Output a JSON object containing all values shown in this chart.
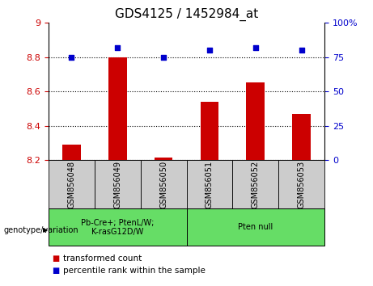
{
  "title": "GDS4125 / 1452984_at",
  "samples": [
    "GSM856048",
    "GSM856049",
    "GSM856050",
    "GSM856051",
    "GSM856052",
    "GSM856053"
  ],
  "bar_values": [
    8.29,
    8.8,
    8.215,
    8.54,
    8.655,
    8.47
  ],
  "bar_baseline": 8.2,
  "bar_color": "#cc0000",
  "dot_values": [
    75,
    82,
    75,
    80,
    82,
    80
  ],
  "dot_color": "#0000cc",
  "ylim_left": [
    8.2,
    9.0
  ],
  "ylim_right": [
    0,
    100
  ],
  "yticks_left": [
    8.2,
    8.4,
    8.6,
    8.8,
    9.0
  ],
  "yticks_right": [
    0,
    25,
    50,
    75,
    100
  ],
  "ytick_labels_left": [
    "8.2",
    "8.4",
    "8.6",
    "8.8",
    "9"
  ],
  "ytick_labels_right": [
    "0",
    "25",
    "50",
    "75",
    "100%"
  ],
  "left_tick_color": "#cc0000",
  "right_tick_color": "#0000cc",
  "groups": [
    {
      "label": "Pb-Cre+; PtenL/W;\nK-rasG12D/W",
      "start": 0,
      "end": 2,
      "color": "#66dd66"
    },
    {
      "label": "Pten null",
      "start": 3,
      "end": 5,
      "color": "#66dd66"
    }
  ],
  "group_label_prefix": "genotype/variation",
  "legend_items": [
    {
      "color": "#cc0000",
      "label": "transformed count"
    },
    {
      "color": "#0000cc",
      "label": "percentile rank within the sample"
    }
  ],
  "background_color": "#ffffff",
  "sample_bg_color": "#cccccc",
  "title_fontsize": 11,
  "tick_fontsize": 8,
  "sample_fontsize": 7,
  "group_fontsize": 7,
  "legend_fontsize": 7.5
}
